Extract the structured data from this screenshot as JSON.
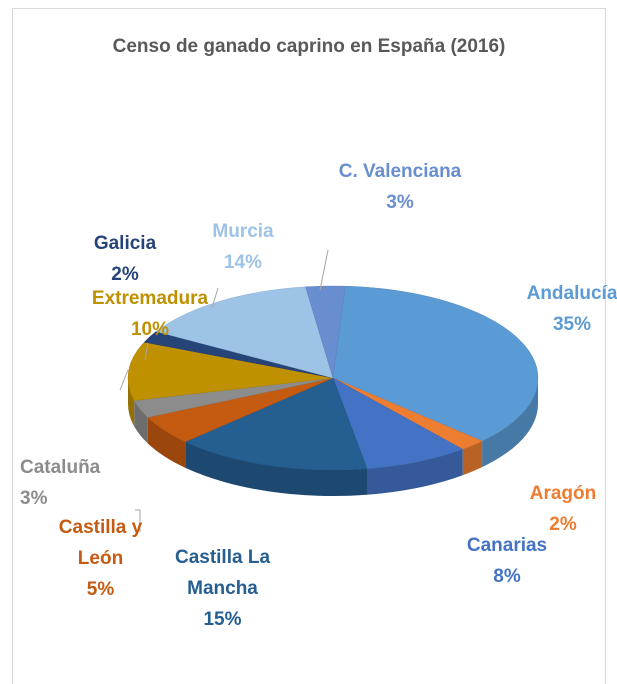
{
  "chart_data": {
    "type": "pie3d",
    "title": "Censo de ganado caprino en España (2016)",
    "categories": [
      "Andalucía",
      "Aragón",
      "Canarias",
      "Castilla La Mancha",
      "Castilla y León",
      "Cataluña",
      "Extremadura",
      "Galicia",
      "Murcia",
      "C. Valenciana"
    ],
    "values": [
      35,
      2,
      8,
      15,
      5,
      3,
      10,
      2,
      14,
      3
    ],
    "value_labels": [
      "35%",
      "2%",
      "8%",
      "15%",
      "5%",
      "3%",
      "10%",
      "2%",
      "14%",
      "3%"
    ],
    "colors": [
      "#5b9bd5",
      "#ed7d31",
      "#4472c4",
      "#255e91",
      "#c55a11",
      "#8c8c8c",
      "#bf9000",
      "#264478",
      "#9dc3e6",
      "#698ed0"
    ]
  }
}
